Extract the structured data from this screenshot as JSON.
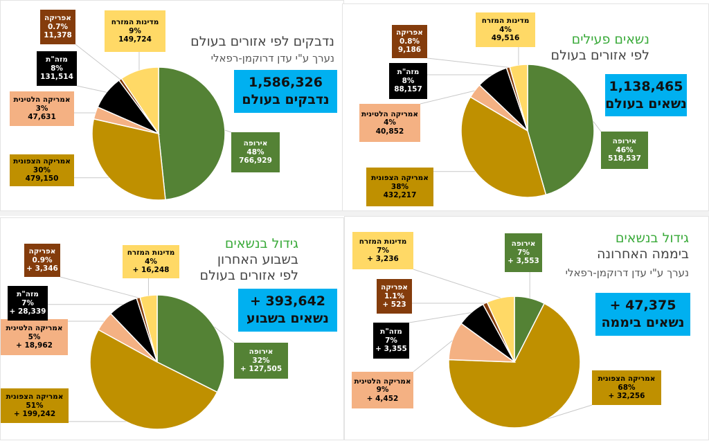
{
  "colors": {
    "europe": "#548235",
    "north_america": "#bf9000",
    "latin_america": "#f4b183",
    "far_east": "#000000",
    "africa": "#843c0c",
    "middle_east": "#ffd966",
    "accent_box": "#00b0f0",
    "title_green": "#3aaa3a"
  },
  "charts": [
    {
      "title_parts": [
        "נדבקים לפי אזורים בעולם"
      ],
      "subtitle": "נערך ע\"י עדן דרוקמן-רפאלי",
      "total": {
        "value": "1,586,326",
        "label": "נדבקים בעולם"
      }
    },
    {
      "title_parts": [
        "נשאים פעילים",
        "לפי אזורים בעולם"
      ],
      "subtitle": "",
      "total": {
        "value": "1,138,465",
        "label": "נשאים בעולם"
      }
    },
    {
      "title_parts": [
        "גידול בנשאים",
        "בשבוע האחרון",
        "לפי אזורים בעולם"
      ],
      "subtitle": "",
      "total": {
        "value": "+ 393,642",
        "label": "נשאים בשבוע"
      }
    },
    {
      "title_parts": [
        "גידול בנשאים",
        "ביממה האחרונה"
      ],
      "subtitle": "נערך ע\"י עדן דרוקמן-רפאלי",
      "total": {
        "value": "+ 47,375",
        "label": "נשאים ביממה"
      }
    }
  ],
  "chart_data": [
    {
      "type": "pie",
      "title": "נדבקים לפי אזורים בעולם",
      "categories": [
        "אירופה",
        "אמריקה הצפונית",
        "אמריקה הלטינית",
        "מזה\"ת",
        "אפריקה",
        "מדינות המזרח"
      ],
      "values": [
        766929,
        479150,
        47631,
        131514,
        11378,
        149724
      ],
      "percent_labels": [
        "48%",
        "30%",
        "3%",
        "8%",
        "0.7%",
        "9%"
      ],
      "value_labels": [
        "766,929",
        "479,150",
        "47,631",
        "131,514",
        "11,378",
        "149,724"
      ],
      "colors": [
        "#548235",
        "#bf9000",
        "#f4b183",
        "#000000",
        "#843c0c",
        "#ffd966"
      ]
    },
    {
      "type": "pie",
      "title": "נשאים פעילים לפי אזורים בעולם",
      "categories": [
        "אירופה",
        "אמריקה הצפונית",
        "אמריקה הלטינית",
        "מזה\"ת",
        "אפריקה",
        "מדינות המזרח"
      ],
      "values": [
        518537,
        432217,
        40852,
        88157,
        9186,
        49516
      ],
      "percent_labels": [
        "46%",
        "38%",
        "4%",
        "8%",
        "0.8%",
        "4%"
      ],
      "value_labels": [
        "518,537",
        "432,217",
        "40,852",
        "88,157",
        "9,186",
        "49,516"
      ],
      "colors": [
        "#548235",
        "#bf9000",
        "#f4b183",
        "#000000",
        "#843c0c",
        "#ffd966"
      ]
    },
    {
      "type": "pie",
      "title": "גידול בנשאים בשבוע האחרון לפי אזורים בעולם",
      "categories": [
        "אירופה",
        "אמריקה הצפונית",
        "אמריקה הלטינית",
        "מזה\"ת",
        "אפריקה",
        "מדינות המזרח"
      ],
      "values": [
        127505,
        199242,
        18962,
        28339,
        3346,
        16248
      ],
      "percent_labels": [
        "32%",
        "51%",
        "5%",
        "7%",
        "0.9%",
        "4%"
      ],
      "value_labels": [
        "+ 127,505",
        "+ 199,242",
        "+ 18,962",
        "+ 28,339",
        "+ 3,346",
        "+ 16,248"
      ],
      "colors": [
        "#548235",
        "#bf9000",
        "#f4b183",
        "#000000",
        "#843c0c",
        "#ffd966"
      ]
    },
    {
      "type": "pie",
      "title": "גידול בנשאים ביממה האחרונה",
      "categories": [
        "אירופה",
        "אמריקה הצפונית",
        "אמריקה הלטינית",
        "מזה\"ת",
        "אפריקה",
        "מדינות המזרח"
      ],
      "values": [
        3553,
        32256,
        4452,
        3355,
        523,
        3236
      ],
      "percent_labels": [
        "7%",
        "68%",
        "9%",
        "7%",
        "1.1%",
        "7%"
      ],
      "value_labels": [
        "+ 3,553",
        "+ 32,256",
        "+ 4,452",
        "+ 3,355",
        "+ 523",
        "+ 3,236"
      ],
      "colors": [
        "#548235",
        "#bf9000",
        "#f4b183",
        "#000000",
        "#843c0c",
        "#ffd966"
      ]
    }
  ]
}
